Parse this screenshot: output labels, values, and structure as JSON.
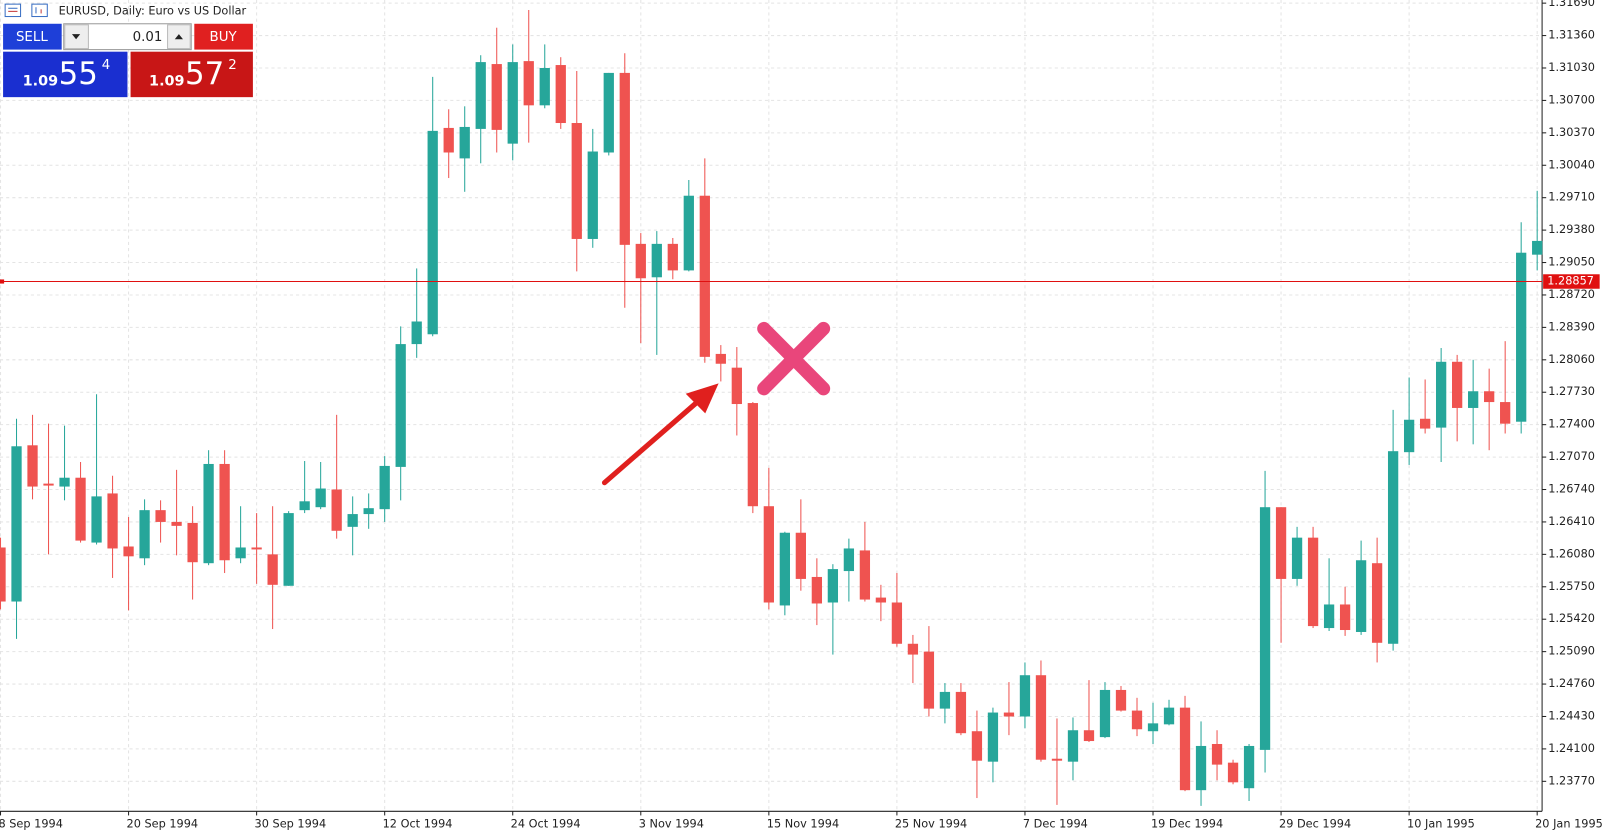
{
  "chart_data": {
    "type": "candlestick",
    "title": "EURUSD, Daily:  Euro vs US Dollar",
    "categories": [
      "8 Sep 1994",
      null,
      null,
      null,
      null,
      null,
      null,
      null,
      "20 Sep 1994",
      null,
      null,
      null,
      null,
      null,
      null,
      null,
      "30 Sep 1994",
      null,
      null,
      null,
      null,
      null,
      null,
      null,
      "12 Oct 1994",
      null,
      null,
      null,
      null,
      null,
      null,
      null,
      "24 Oct 1994",
      null,
      null,
      null,
      null,
      null,
      null,
      null,
      "3 Nov 1994",
      null,
      null,
      null,
      null,
      null,
      null,
      null,
      "15 Nov 1994",
      null,
      null,
      null,
      null,
      null,
      null,
      null,
      "25 Nov 1994",
      null,
      null,
      null,
      null,
      null,
      null,
      null,
      "7 Dec 1994",
      null,
      null,
      null,
      null,
      null,
      null,
      null,
      "19 Dec 1994",
      null,
      null,
      null,
      null,
      null,
      null,
      null,
      "29 Dec 1994",
      null,
      null,
      null,
      null,
      null,
      null,
      null,
      "10 Jan 1995",
      null,
      null,
      null,
      null,
      null,
      null,
      null,
      "20 Jan 1995"
    ],
    "open": [
      1.2615,
      1.256,
      1.2719,
      1.268,
      1.2677,
      1.2686,
      1.262,
      1.267,
      1.2616,
      1.2604,
      1.2653,
      1.2641,
      1.264,
      1.2599,
      1.27,
      1.2604,
      1.2615,
      1.2608,
      1.2576,
      1.2653,
      1.2656,
      1.2674,
      1.2636,
      1.2649,
      1.2654,
      1.2697,
      1.2822,
      1.2832,
      1.3042,
      1.3011,
      1.3041,
      1.3107,
      1.3026,
      1.311,
      1.3065,
      1.3106,
      1.3047,
      1.2929,
      1.3017,
      1.3098,
      1.2924,
      1.289,
      1.2924,
      1.2897,
      1.2973,
      1.2812,
      1.2798,
      1.2762,
      1.2657,
      1.2556,
      1.263,
      1.2585,
      1.2559,
      1.2591,
      1.2612,
      1.2564,
      1.2559,
      1.2517,
      1.2509,
      1.2451,
      1.2468,
      1.2428,
      1.2397,
      1.2447,
      1.2443,
      1.2485,
      1.24,
      1.2397,
      1.2429,
      1.2422,
      1.247,
      1.2449,
      1.2428,
      1.2435,
      1.2452,
      1.2368,
      1.2415,
      1.2396,
      1.237,
      1.2409,
      1.2656,
      1.2583,
      1.2625,
      1.2533,
      1.2557,
      1.2529,
      1.2599,
      1.2517,
      1.2712,
      1.2746,
      1.2737,
      1.2804,
      1.2757,
      1.2774,
      1.2763,
      1.2743,
      1.2913
    ],
    "high": [
      1.2625,
      1.2746,
      1.275,
      1.2741,
      1.2739,
      1.2702,
      1.2771,
      1.2688,
      1.2646,
      1.2664,
      1.2663,
      1.2694,
      1.2657,
      1.2714,
      1.2714,
      1.2657,
      1.265,
      1.2657,
      1.2652,
      1.2703,
      1.2702,
      1.275,
      1.2667,
      1.267,
      1.2708,
      1.284,
      1.2899,
      1.3094,
      1.3061,
      1.3064,
      1.3116,
      1.3144,
      1.3127,
      1.3162,
      1.3127,
      1.3114,
      1.31,
      1.3041,
      1.3098,
      1.3118,
      1.2935,
      1.2937,
      1.293,
      1.2989,
      1.3011,
      1.2821,
      1.2819,
      1.2763,
      1.2696,
      1.2631,
      1.2664,
      1.2604,
      1.2598,
      1.2624,
      1.2641,
      1.2577,
      1.2589,
      1.2526,
      1.2535,
      1.2477,
      1.2477,
      1.2449,
      1.2452,
      1.2478,
      1.2498,
      1.25,
      1.2441,
      1.2442,
      1.248,
      1.2478,
      1.2474,
      1.2462,
      1.2457,
      1.246,
      1.2464,
      1.2438,
      1.2429,
      1.2399,
      1.2415,
      1.2693,
      1.2656,
      1.2636,
      1.2636,
      1.2604,
      1.2575,
      1.2622,
      1.2625,
      1.2755,
      1.2788,
      1.2786,
      1.2818,
      1.2811,
      1.2806,
      1.2797,
      1.2825,
      1.2946,
      1.2978
    ],
    "low": [
      1.2552,
      1.2522,
      1.2664,
      1.2608,
      1.2663,
      1.262,
      1.2618,
      1.2584,
      1.2551,
      1.2597,
      1.262,
      1.2607,
      1.2562,
      1.2597,
      1.2589,
      1.2599,
      1.2578,
      1.2532,
      1.2576,
      1.265,
      1.2654,
      1.2624,
      1.2607,
      1.2634,
      1.2641,
      1.2663,
      1.2808,
      1.283,
      1.2991,
      1.2977,
      1.3006,
      1.3017,
      1.3009,
      1.3027,
      1.3062,
      1.3041,
      1.2896,
      1.292,
      1.3014,
      1.2859,
      1.2823,
      1.2811,
      1.2888,
      1.2896,
      1.2803,
      1.2784,
      1.2729,
      1.265,
      1.2552,
      1.2546,
      1.2571,
      1.2536,
      1.2506,
      1.256,
      1.256,
      1.254,
      1.2514,
      1.2477,
      1.2443,
      1.2436,
      1.2424,
      1.236,
      1.2376,
      1.2424,
      1.2431,
      1.2397,
      1.2353,
      1.2378,
      1.2417,
      1.2421,
      1.2448,
      1.2423,
      1.2415,
      1.2434,
      1.2367,
      1.2352,
      1.2378,
      1.2374,
      1.2357,
      1.2386,
      1.2518,
      1.2576,
      1.2533,
      1.253,
      1.2525,
      1.2526,
      1.2498,
      1.251,
      1.2699,
      1.2731,
      1.2702,
      1.2723,
      1.272,
      1.2714,
      1.2731,
      1.2731,
      1.2897
    ],
    "close": [
      1.256,
      1.2718,
      1.2677,
      1.2678,
      1.2686,
      1.2622,
      1.2667,
      1.2614,
      1.2606,
      1.2653,
      1.2641,
      1.2637,
      1.26,
      1.27,
      1.2602,
      1.2615,
      1.2613,
      1.2577,
      1.265,
      1.2662,
      1.2675,
      1.2632,
      1.2649,
      1.2655,
      1.2698,
      1.2822,
      1.2845,
      1.3039,
      1.3017,
      1.3043,
      1.3109,
      1.304,
      1.3109,
      1.3065,
      1.3103,
      1.3047,
      1.2929,
      1.3018,
      1.3098,
      1.2923,
      1.2889,
      1.2924,
      1.2897,
      1.2973,
      1.2809,
      1.2802,
      1.2761,
      1.2657,
      1.2559,
      1.263,
      1.2583,
      1.2558,
      1.2593,
      1.2614,
      1.2562,
      1.2559,
      1.2517,
      1.2506,
      1.2451,
      1.2468,
      1.2426,
      1.2398,
      1.2447,
      1.2443,
      1.2485,
      1.2399,
      1.2398,
      1.2429,
      1.2418,
      1.247,
      1.2449,
      1.243,
      1.2436,
      1.2452,
      1.2368,
      1.2413,
      1.2394,
      1.2376,
      1.2413,
      1.2656,
      1.2583,
      1.2625,
      1.2535,
      1.2557,
      1.2531,
      1.2602,
      1.2518,
      1.2713,
      1.2745,
      1.2736,
      1.2804,
      1.2757,
      1.2774,
      1.2763,
      1.2741,
      1.2915,
      1.2927
    ],
    "up_color": "#26a69a",
    "down_color": "#ef5350",
    "ylim": [
      1.23465,
      1.31722
    ],
    "yticks": [
      {
        "value": 1.2377,
        "label": "1.23770"
      },
      {
        "value": 1.241,
        "label": "1.24100"
      },
      {
        "value": 1.2443,
        "label": "1.24430"
      },
      {
        "value": 1.2476,
        "label": "1.24760"
      },
      {
        "value": 1.2509,
        "label": "1.25090"
      },
      {
        "value": 1.2542,
        "label": "1.25420"
      },
      {
        "value": 1.2575,
        "label": "1.25750"
      },
      {
        "value": 1.2608,
        "label": "1.26080"
      },
      {
        "value": 1.2641,
        "label": "1.26410"
      },
      {
        "value": 1.2674,
        "label": "1.26740"
      },
      {
        "value": 1.2707,
        "label": "1.27070"
      },
      {
        "value": 1.274,
        "label": "1.27400"
      },
      {
        "value": 1.2773,
        "label": "1.27730"
      },
      {
        "value": 1.2806,
        "label": "1.28060"
      },
      {
        "value": 1.2839,
        "label": "1.28390"
      },
      {
        "value": 1.2872,
        "label": "1.28720"
      },
      {
        "value": 1.2905,
        "label": "1.29050"
      },
      {
        "value": 1.2938,
        "label": "1.29380"
      },
      {
        "value": 1.2971,
        "label": "1.29710"
      },
      {
        "value": 1.3004,
        "label": "1.30040"
      },
      {
        "value": 1.3037,
        "label": "1.30370"
      },
      {
        "value": 1.307,
        "label": "1.30700"
      },
      {
        "value": 1.3103,
        "label": "1.31030"
      },
      {
        "value": 1.3136,
        "label": "1.31360"
      },
      {
        "value": 1.3169,
        "label": "1.31690"
      }
    ],
    "grid": true,
    "price_line": {
      "value": 1.28857,
      "color": "#e01010"
    }
  },
  "trade_panel": {
    "sell_label": "SELL",
    "buy_label": "BUY",
    "volume": "0.01",
    "bid": {
      "prefix": "1.09",
      "big": "55",
      "sup": "4"
    },
    "ask": {
      "prefix": "1.09",
      "big": "57",
      "sup": "2"
    }
  }
}
